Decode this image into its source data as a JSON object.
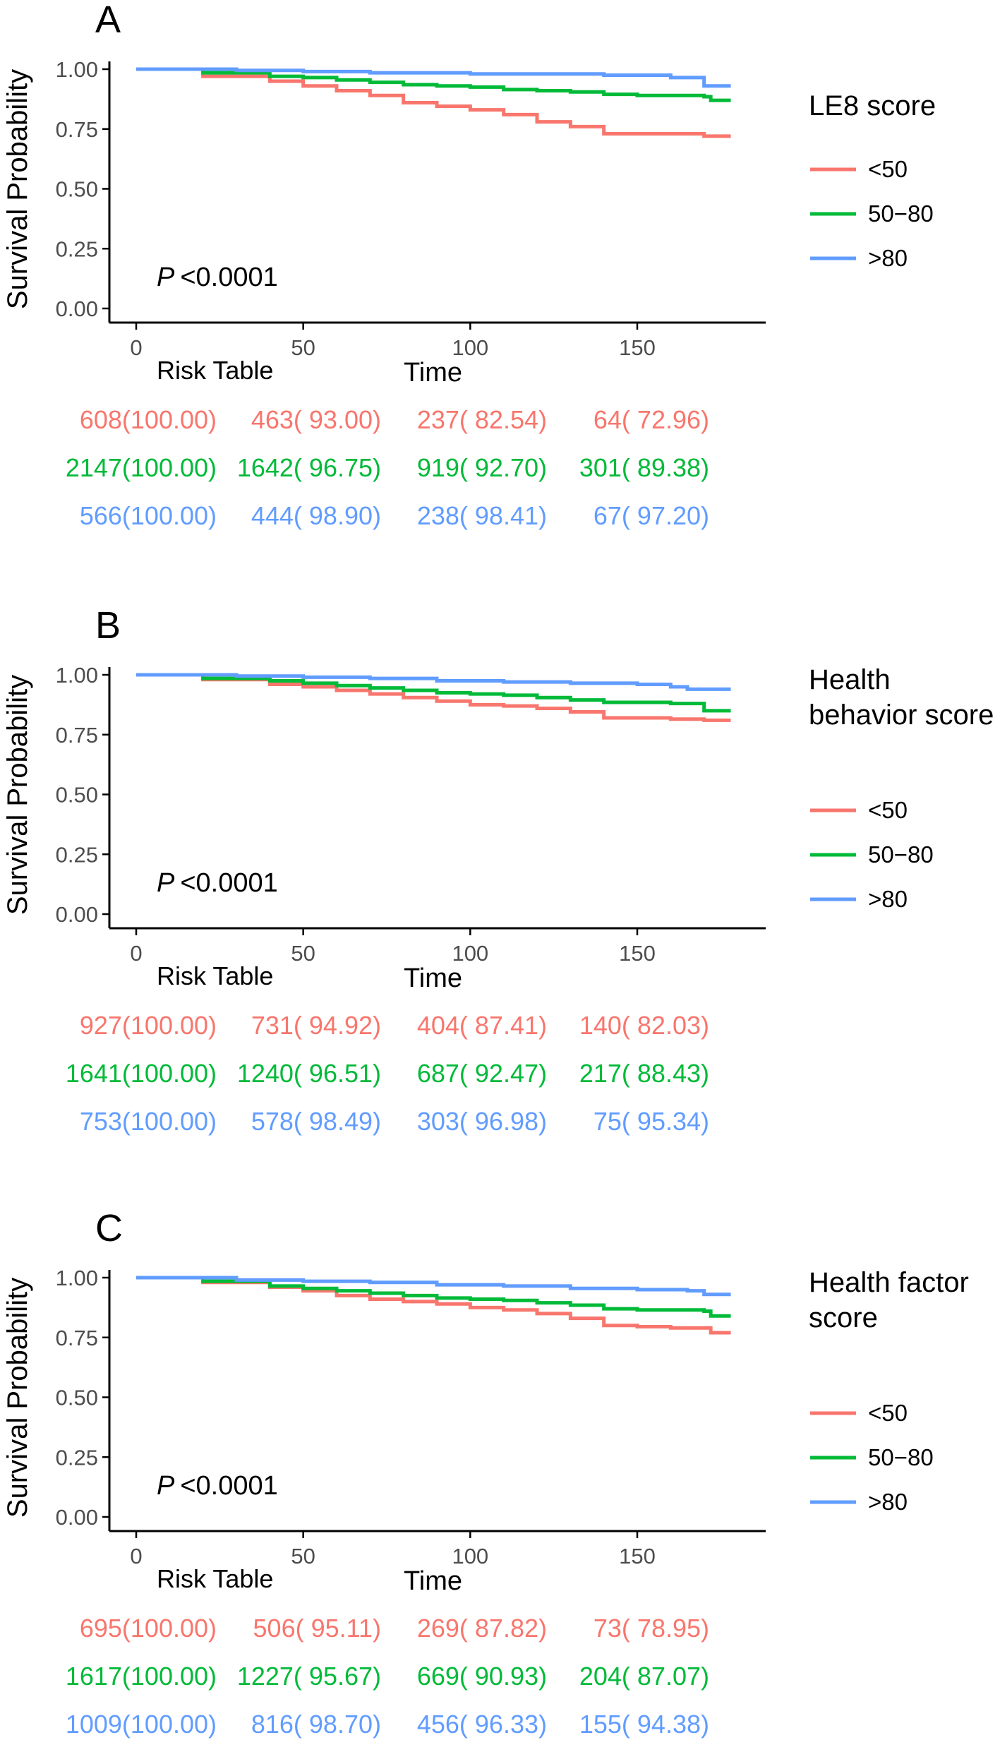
{
  "colors": {
    "lt50": "#F8766D",
    "mid": "#00BA38",
    "gt80": "#619CFF",
    "axis": "#000000",
    "tick_text": "#4D4D4D"
  },
  "chart_data": [
    {
      "panel_letter": "A",
      "type": "line",
      "title": "",
      "xlabel": "Time",
      "ylabel": "Survival Probability",
      "xlim": [
        0,
        180
      ],
      "ylim": [
        0,
        1
      ],
      "x_ticks": [
        0,
        50,
        100,
        150
      ],
      "y_ticks": [
        "0.00",
        "0.25",
        "0.50",
        "0.75",
        "1.00"
      ],
      "legend_title_lines": [
        "LE8 score"
      ],
      "p_label": "P",
      "p_value": "<0.0001",
      "risk_label": "Risk Table",
      "risk_times": [
        0,
        50,
        100,
        150
      ],
      "series": [
        {
          "name": "<50",
          "color_key": "lt50",
          "points": [
            [
              0,
              1
            ],
            [
              20,
              0.97
            ],
            [
              40,
              0.95
            ],
            [
              50,
              0.93
            ],
            [
              60,
              0.91
            ],
            [
              70,
              0.89
            ],
            [
              80,
              0.86
            ],
            [
              90,
              0.845
            ],
            [
              100,
              0.83
            ],
            [
              110,
              0.81
            ],
            [
              120,
              0.78
            ],
            [
              130,
              0.76
            ],
            [
              140,
              0.73
            ],
            [
              150,
              0.73
            ],
            [
              160,
              0.73
            ],
            [
              170,
              0.72
            ],
            [
              178,
              0.72
            ]
          ],
          "risk": [
            "608(100.00)",
            "463( 93.00)",
            "237( 82.54)",
            "64( 72.96)"
          ]
        },
        {
          "name": "50−80",
          "color_key": "mid",
          "points": [
            [
              0,
              1
            ],
            [
              20,
              0.985
            ],
            [
              40,
              0.97
            ],
            [
              50,
              0.965
            ],
            [
              60,
              0.955
            ],
            [
              70,
              0.945
            ],
            [
              80,
              0.935
            ],
            [
              90,
              0.93
            ],
            [
              100,
              0.925
            ],
            [
              110,
              0.915
            ],
            [
              120,
              0.91
            ],
            [
              130,
              0.905
            ],
            [
              140,
              0.895
            ],
            [
              150,
              0.89
            ],
            [
              160,
              0.89
            ],
            [
              170,
              0.885
            ],
            [
              172,
              0.87
            ],
            [
              178,
              0.87
            ]
          ],
          "risk": [
            "2147(100.00)",
            "1642( 96.75)",
            "919( 92.70)",
            "301( 89.38)"
          ]
        },
        {
          "name": ">80",
          "color_key": "gt80",
          "points": [
            [
              0,
              1
            ],
            [
              30,
              0.995
            ],
            [
              50,
              0.99
            ],
            [
              70,
              0.985
            ],
            [
              100,
              0.98
            ],
            [
              120,
              0.98
            ],
            [
              140,
              0.975
            ],
            [
              160,
              0.965
            ],
            [
              168,
              0.965
            ],
            [
              170,
              0.93
            ],
            [
              178,
              0.93
            ]
          ],
          "risk": [
            "566(100.00)",
            "444( 98.90)",
            "238( 98.41)",
            "67( 97.20)"
          ]
        }
      ]
    },
    {
      "panel_letter": "B",
      "type": "line",
      "title": "",
      "xlabel": "Time",
      "ylabel": "Survival Probability",
      "xlim": [
        0,
        180
      ],
      "ylim": [
        0,
        1
      ],
      "x_ticks": [
        0,
        50,
        100,
        150
      ],
      "y_ticks": [
        "0.00",
        "0.25",
        "0.50",
        "0.75",
        "1.00"
      ],
      "legend_title_lines": [
        "Health",
        "behavior score"
      ],
      "p_label": "P",
      "p_value": "<0.0001",
      "risk_label": "Risk Table",
      "risk_times": [
        0,
        50,
        100,
        150
      ],
      "series": [
        {
          "name": "<50",
          "color_key": "lt50",
          "points": [
            [
              0,
              1
            ],
            [
              20,
              0.98
            ],
            [
              40,
              0.96
            ],
            [
              50,
              0.95
            ],
            [
              60,
              0.935
            ],
            [
              70,
              0.92
            ],
            [
              80,
              0.905
            ],
            [
              90,
              0.89
            ],
            [
              100,
              0.875
            ],
            [
              110,
              0.87
            ],
            [
              120,
              0.86
            ],
            [
              130,
              0.845
            ],
            [
              140,
              0.82
            ],
            [
              150,
              0.82
            ],
            [
              160,
              0.815
            ],
            [
              170,
              0.81
            ],
            [
              178,
              0.81
            ]
          ],
          "risk": [
            "927(100.00)",
            "731( 94.92)",
            "404( 87.41)",
            "140( 82.03)"
          ]
        },
        {
          "name": "50−80",
          "color_key": "mid",
          "points": [
            [
              0,
              1
            ],
            [
              20,
              0.985
            ],
            [
              40,
              0.975
            ],
            [
              50,
              0.965
            ],
            [
              60,
              0.955
            ],
            [
              70,
              0.945
            ],
            [
              80,
              0.935
            ],
            [
              90,
              0.925
            ],
            [
              100,
              0.92
            ],
            [
              110,
              0.915
            ],
            [
              120,
              0.905
            ],
            [
              130,
              0.895
            ],
            [
              140,
              0.885
            ],
            [
              150,
              0.885
            ],
            [
              160,
              0.88
            ],
            [
              168,
              0.88
            ],
            [
              170,
              0.85
            ],
            [
              178,
              0.85
            ]
          ],
          "risk": [
            "1641(100.00)",
            "1240( 96.51)",
            "687( 92.47)",
            "217( 88.43)"
          ]
        },
        {
          "name": ">80",
          "color_key": "gt80",
          "points": [
            [
              0,
              1
            ],
            [
              30,
              0.995
            ],
            [
              50,
              0.99
            ],
            [
              70,
              0.985
            ],
            [
              90,
              0.975
            ],
            [
              110,
              0.97
            ],
            [
              130,
              0.965
            ],
            [
              150,
              0.96
            ],
            [
              160,
              0.95
            ],
            [
              165,
              0.94
            ],
            [
              178,
              0.94
            ]
          ],
          "risk": [
            "753(100.00)",
            "578( 98.49)",
            "303( 96.98)",
            "75( 95.34)"
          ]
        }
      ]
    },
    {
      "panel_letter": "C",
      "type": "line",
      "title": "",
      "xlabel": "Time",
      "ylabel": "Survival Probability",
      "xlim": [
        0,
        180
      ],
      "ylim": [
        0,
        1
      ],
      "x_ticks": [
        0,
        50,
        100,
        150
      ],
      "y_ticks": [
        "0.00",
        "0.25",
        "0.50",
        "0.75",
        "1.00"
      ],
      "legend_title_lines": [
        "Health factor",
        "score"
      ],
      "p_label": "P",
      "p_value": "<0.0001",
      "risk_label": "Risk Table",
      "risk_times": [
        0,
        50,
        100,
        150
      ],
      "series": [
        {
          "name": "<50",
          "color_key": "lt50",
          "points": [
            [
              0,
              1
            ],
            [
              20,
              0.98
            ],
            [
              40,
              0.96
            ],
            [
              50,
              0.945
            ],
            [
              60,
              0.925
            ],
            [
              70,
              0.91
            ],
            [
              80,
              0.9
            ],
            [
              90,
              0.89
            ],
            [
              100,
              0.875
            ],
            [
              110,
              0.865
            ],
            [
              120,
              0.85
            ],
            [
              130,
              0.83
            ],
            [
              140,
              0.8
            ],
            [
              150,
              0.795
            ],
            [
              160,
              0.79
            ],
            [
              170,
              0.79
            ],
            [
              172,
              0.77
            ],
            [
              178,
              0.77
            ]
          ],
          "risk": [
            "695(100.00)",
            "506( 95.11)",
            "269( 87.82)",
            "73( 78.95)"
          ]
        },
        {
          "name": "50−80",
          "color_key": "mid",
          "points": [
            [
              0,
              1
            ],
            [
              20,
              0.985
            ],
            [
              40,
              0.965
            ],
            [
              50,
              0.955
            ],
            [
              60,
              0.945
            ],
            [
              70,
              0.935
            ],
            [
              80,
              0.925
            ],
            [
              90,
              0.915
            ],
            [
              100,
              0.91
            ],
            [
              110,
              0.905
            ],
            [
              120,
              0.895
            ],
            [
              130,
              0.885
            ],
            [
              140,
              0.87
            ],
            [
              150,
              0.865
            ],
            [
              160,
              0.865
            ],
            [
              170,
              0.86
            ],
            [
              172,
              0.84
            ],
            [
              178,
              0.84
            ]
          ],
          "risk": [
            "1617(100.00)",
            "1227( 95.67)",
            "669( 90.93)",
            "204( 87.07)"
          ]
        },
        {
          "name": ">80",
          "color_key": "gt80",
          "points": [
            [
              0,
              1
            ],
            [
              30,
              0.99
            ],
            [
              50,
              0.985
            ],
            [
              70,
              0.98
            ],
            [
              90,
              0.97
            ],
            [
              110,
              0.965
            ],
            [
              130,
              0.955
            ],
            [
              150,
              0.95
            ],
            [
              165,
              0.945
            ],
            [
              170,
              0.93
            ],
            [
              178,
              0.93
            ]
          ],
          "risk": [
            "1009(100.00)",
            "816( 98.70)",
            "456( 96.33)",
            "155( 94.38)"
          ]
        }
      ]
    }
  ]
}
